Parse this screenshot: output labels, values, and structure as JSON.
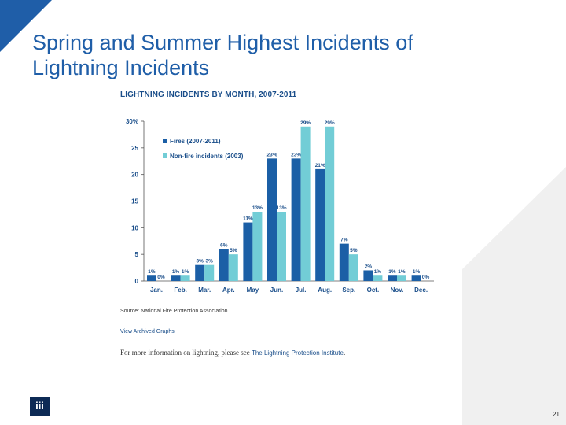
{
  "slide": {
    "title": "Spring and Summer Highest Incidents of Lightning Incidents",
    "page_number": "21",
    "logo_text": "iii"
  },
  "colors": {
    "accent_blue": "#1f5ea8",
    "fires": "#1b5fa6",
    "non_fire": "#72cdd6",
    "decor_gray": "#f0f0f0"
  },
  "chart_data": {
    "type": "bar",
    "title": "LIGHTNING INCIDENTS BY MONTH, 2007-2011",
    "categories": [
      "Jan.",
      "Feb.",
      "Mar.",
      "Apr.",
      "May",
      "Jun.",
      "Jul.",
      "Aug.",
      "Sep.",
      "Oct.",
      "Nov.",
      "Dec."
    ],
    "series": [
      {
        "name": "Fires (2007-2011)",
        "values": [
          1,
          1,
          3,
          6,
          11,
          23,
          23,
          21,
          7,
          2,
          1,
          1
        ],
        "labels": [
          "1%",
          "1%",
          "3%",
          "6%",
          "11%",
          "23%",
          "23%",
          "21%",
          "7%",
          "2%",
          "1%",
          "1%"
        ]
      },
      {
        "name": "Non-fire incidents (2003)",
        "values": [
          0,
          1,
          3,
          5,
          13,
          13,
          29,
          29,
          5,
          1,
          1,
          0
        ],
        "labels": [
          "0%",
          "1%",
          "3%",
          "5%",
          "13%",
          "13%",
          "29%",
          "29%",
          "5%",
          "1%",
          "1%",
          "0%"
        ]
      }
    ],
    "yticks": [
      "0",
      "5",
      "10",
      "15",
      "20",
      "25",
      "30%"
    ],
    "ytick_values": [
      0,
      5,
      10,
      15,
      20,
      25,
      30
    ],
    "ylim": [
      0,
      30
    ],
    "xlabel": "",
    "ylabel": "",
    "grid": false,
    "legend": "top-left"
  },
  "notes": {
    "source": "Source: National Fire Protection Association.",
    "archive_link": "View Archived Graphs",
    "more_info_prefix": "For more information on lightning, please see ",
    "more_info_link": "The Lightning Protection Institute",
    "more_info_suffix": "."
  }
}
